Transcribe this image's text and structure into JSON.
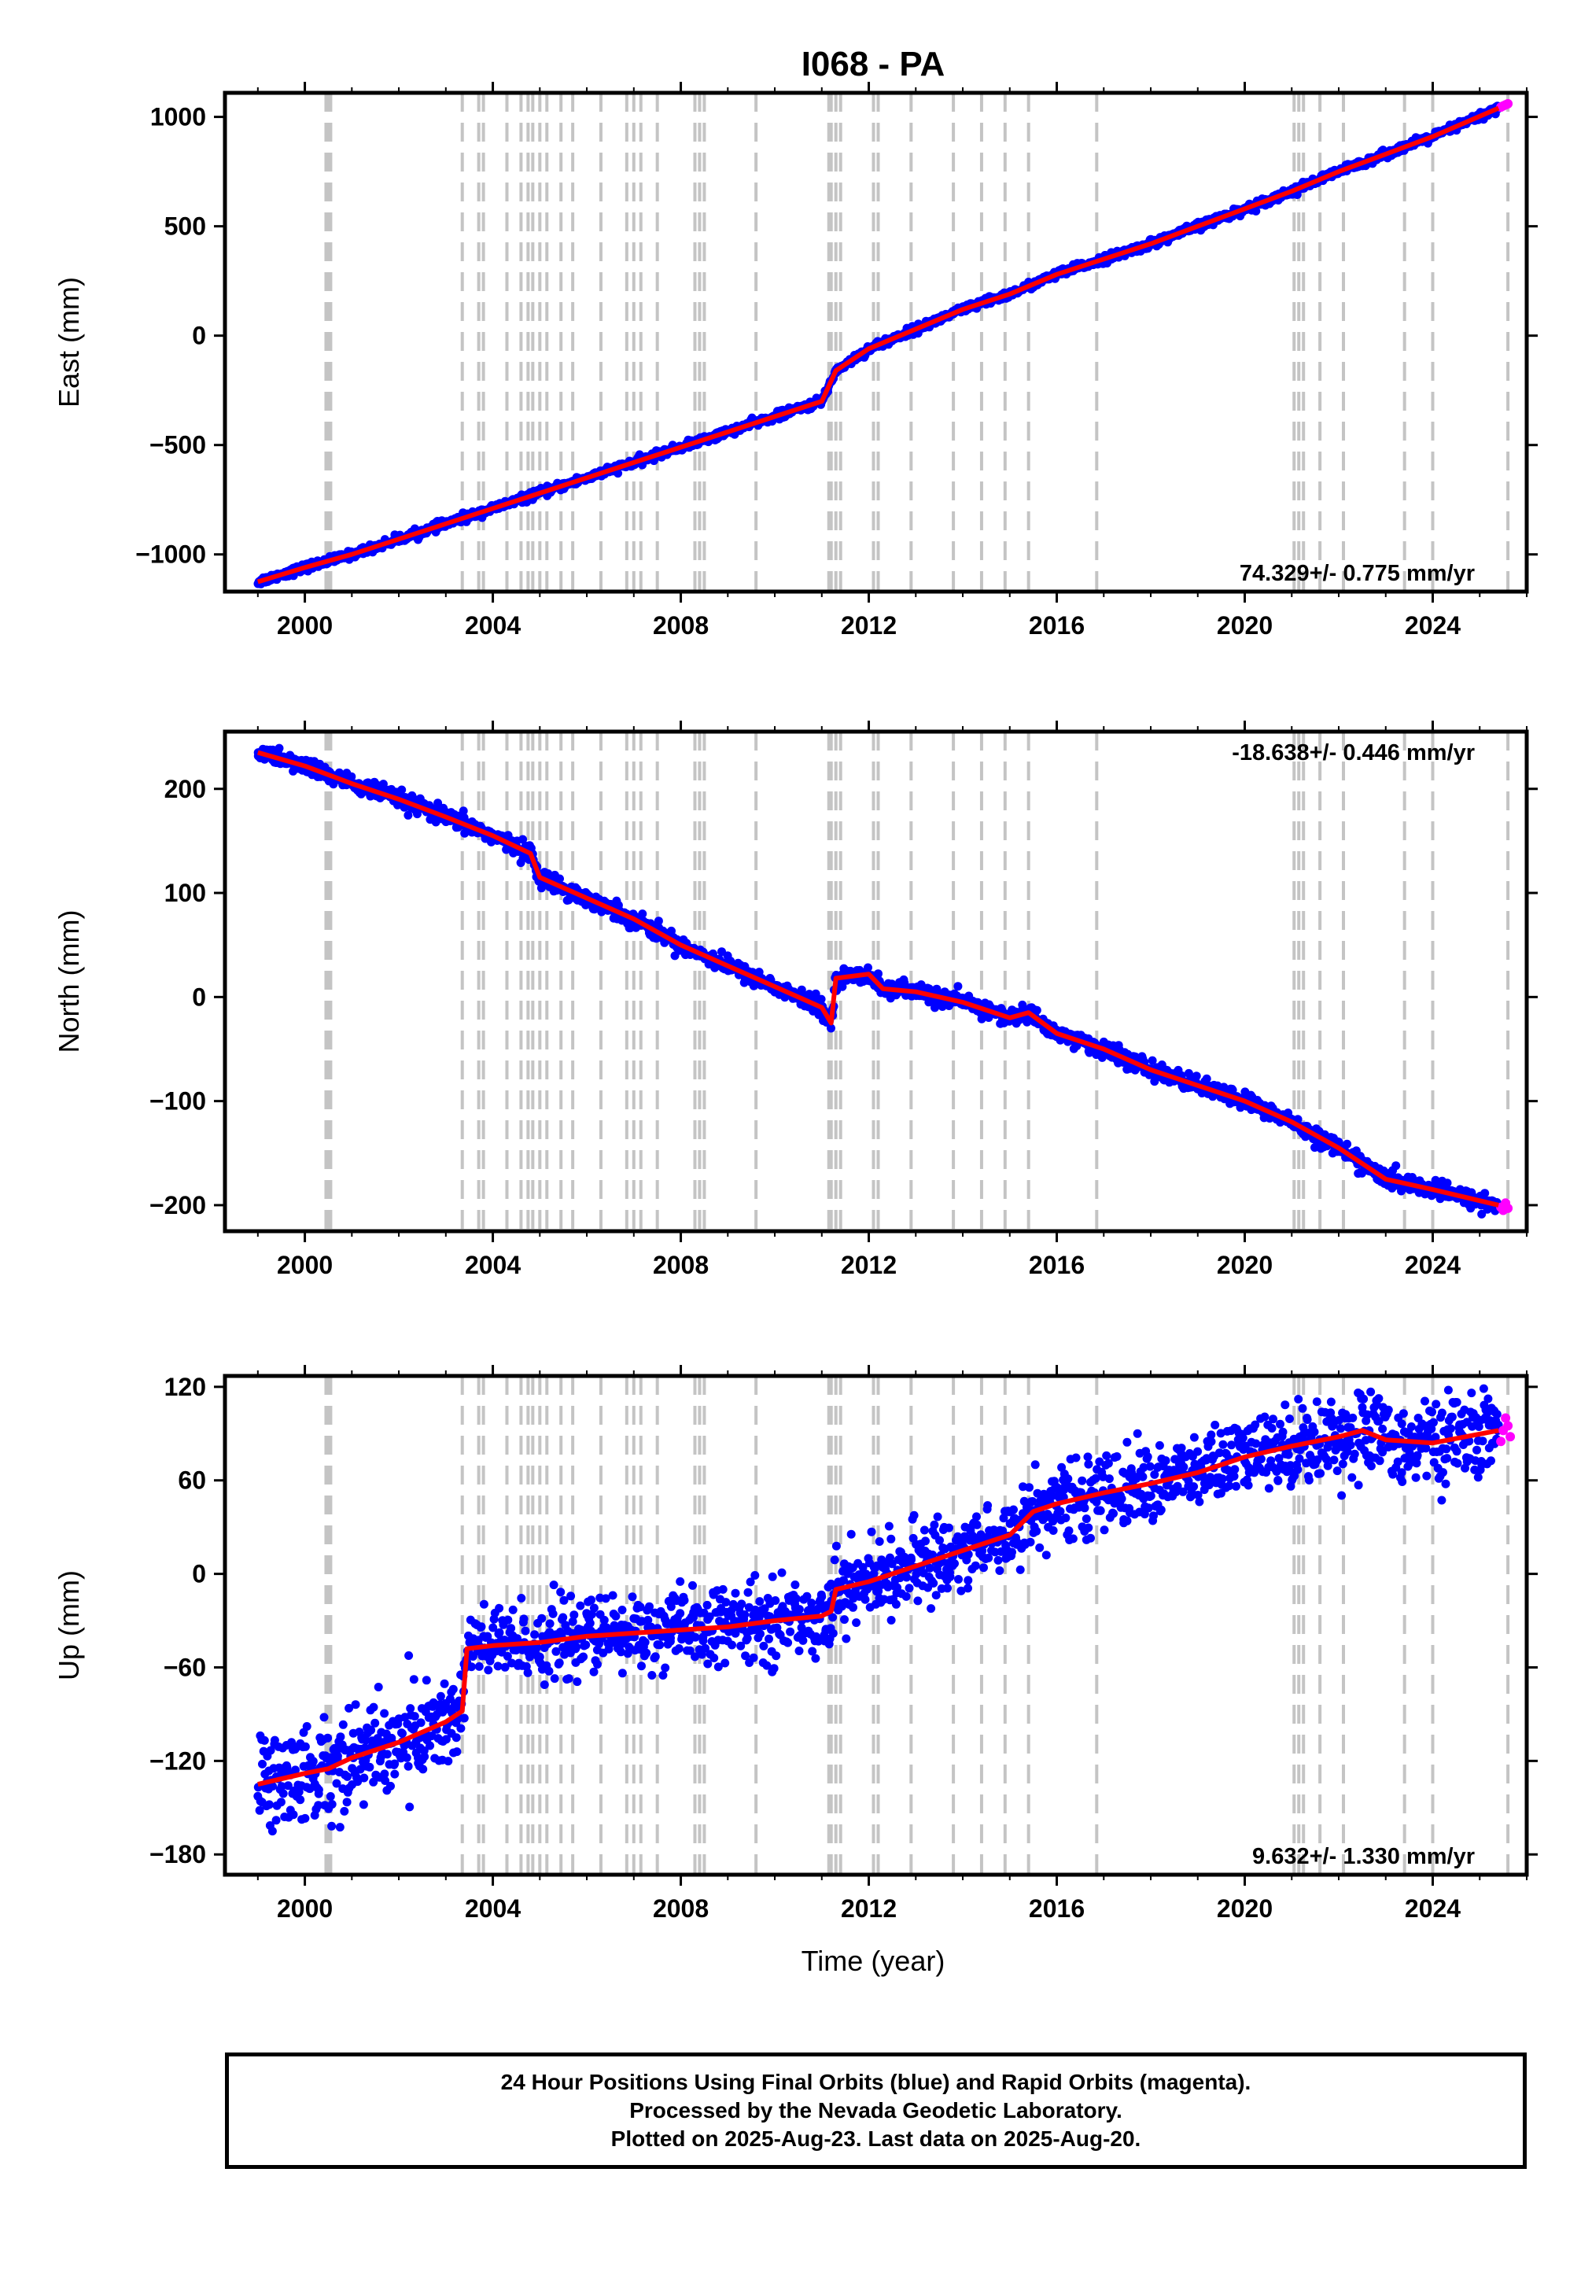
{
  "chart_data": {
    "type": "scatter",
    "title": "I068 - PA",
    "xlabel": "Time (year)",
    "xlim": [
      1998.3,
      2026.0
    ],
    "x_ticks": [
      2000,
      2004,
      2008,
      2012,
      2016,
      2020,
      2024
    ],
    "x_tick_labels": [
      "2000",
      "2004",
      "2008",
      "2012",
      "2016",
      "2020",
      "2024"
    ],
    "event_lines": [
      2000.45,
      2000.5,
      2000.55,
      2003.35,
      2003.7,
      2003.8,
      2004.3,
      2004.6,
      2004.75,
      2004.85,
      2005.0,
      2005.15,
      2005.45,
      2005.7,
      2006.3,
      2006.85,
      2007.0,
      2007.15,
      2007.5,
      2008.3,
      2008.4,
      2008.5,
      2009.6,
      2011.15,
      2011.2,
      2011.3,
      2011.4,
      2012.1,
      2012.2,
      2012.9,
      2013.8,
      2014.4,
      2014.9,
      2015.4,
      2016.85,
      2021.05,
      2021.15,
      2021.25,
      2021.6,
      2022.1,
      2023.4,
      2024.0,
      2025.6
    ],
    "panels": [
      {
        "component": "East",
        "ylabel": "East (mm)",
        "ylim": [
          -1170,
          1110
        ],
        "y_ticks": [
          1000,
          500,
          0,
          -500,
          -1000
        ],
        "y_tick_labels": [
          "1000",
          "500",
          "0",
          "−500",
          "−1000"
        ],
        "rate_text": "74.329+/- 0.775 mm/yr",
        "rate_position": "bottom-right",
        "final_series": {
          "name": "Final Orbits",
          "color": "#0000ff",
          "x": [
            1999.0,
            2000.0,
            2001.0,
            2002.0,
            2003.0,
            2004.0,
            2005.0,
            2006.0,
            2007.0,
            2008.0,
            2009.0,
            2010.0,
            2011.0,
            2011.3,
            2012.0,
            2013.0,
            2014.0,
            2015.0,
            2016.0,
            2017.0,
            2018.0,
            2019.0,
            2020.0,
            2021.0,
            2022.0,
            2023.0,
            2024.0,
            2025.4
          ],
          "y": [
            -1125,
            -1060,
            -1000,
            -930,
            -860,
            -790,
            -720,
            -650,
            -580,
            -510,
            -440,
            -370,
            -300,
            -160,
            -60,
            30,
            120,
            190,
            280,
            350,
            420,
            500,
            580,
            660,
            750,
            830,
            910,
            1040
          ]
        },
        "rapid_series": {
          "name": "Rapid Orbits",
          "color": "#ff00ff",
          "x": [
            2025.45,
            2025.5,
            2025.55,
            2025.6
          ],
          "y": [
            1045,
            1050,
            1055,
            1060
          ]
        },
        "trend_color": "#ff0000",
        "scatter_sigma": 9
      },
      {
        "component": "North",
        "ylabel": "North (mm)",
        "ylim": [
          -225,
          255
        ],
        "y_ticks": [
          200,
          100,
          0,
          -100,
          -200
        ],
        "y_tick_labels": [
          "200",
          "100",
          "0",
          "−100",
          "−200"
        ],
        "rate_text": "-18.638+/- 0.446 mm/yr",
        "rate_position": "top-right",
        "final_series": {
          "name": "Final Orbits",
          "color": "#0000ff",
          "x": [
            1999.0,
            2000.0,
            2001.0,
            2002.0,
            2003.0,
            2004.0,
            2004.8,
            2005.0,
            2006.0,
            2007.0,
            2008.0,
            2009.0,
            2010.0,
            2011.0,
            2011.2,
            2011.3,
            2012.0,
            2012.3,
            2013.0,
            2014.0,
            2015.0,
            2015.4,
            2016.0,
            2017.0,
            2018.0,
            2019.0,
            2020.0,
            2021.0,
            2022.0,
            2023.0,
            2024.0,
            2025.4
          ],
          "y": [
            235,
            222,
            205,
            190,
            173,
            155,
            138,
            115,
            95,
            75,
            50,
            30,
            10,
            -10,
            -25,
            18,
            22,
            8,
            5,
            -5,
            -20,
            -15,
            -35,
            -50,
            -70,
            -85,
            -100,
            -120,
            -145,
            -175,
            -185,
            -200
          ]
        },
        "rapid_series": {
          "name": "Rapid Orbits",
          "color": "#ff00ff",
          "x": [
            2025.45,
            2025.5,
            2025.55,
            2025.6
          ],
          "y": [
            -202,
            -205,
            -198,
            -203
          ]
        },
        "trend_color": "#ff0000",
        "scatter_sigma": 4
      },
      {
        "component": "Up",
        "ylabel": "Up (mm)",
        "ylim": [
          -193,
          127
        ],
        "y_ticks": [
          120,
          60,
          0,
          -60,
          -120,
          -180
        ],
        "y_tick_labels": [
          "120",
          "60",
          "0",
          "−60",
          "−120",
          "−180"
        ],
        "rate_text": "9.632+/- 1.330 mm/yr",
        "rate_position": "bottom-right",
        "final_series": {
          "name": "Final Orbits",
          "color": "#0000ff",
          "x": [
            1999.0,
            2000.0,
            2000.5,
            2001.0,
            2002.0,
            2003.0,
            2003.35,
            2003.45,
            2004.0,
            2005.0,
            2006.0,
            2007.0,
            2008.0,
            2009.0,
            2010.0,
            2011.0,
            2011.2,
            2011.3,
            2012.0,
            2013.0,
            2014.0,
            2015.0,
            2015.5,
            2016.0,
            2017.0,
            2018.0,
            2019.0,
            2020.0,
            2021.0,
            2022.0,
            2022.5,
            2023.0,
            2024.0,
            2025.4
          ],
          "y": [
            -135,
            -128,
            -125,
            -118,
            -108,
            -95,
            -88,
            -48,
            -46,
            -44,
            -40,
            -38,
            -36,
            -34,
            -30,
            -27,
            -24,
            -10,
            -5,
            5,
            15,
            25,
            40,
            45,
            52,
            58,
            65,
            75,
            82,
            88,
            92,
            86,
            84,
            92
          ]
        },
        "rapid_series": {
          "name": "Rapid Orbits",
          "color": "#ff00ff",
          "x": [
            2025.45,
            2025.5,
            2025.55,
            2025.6,
            2025.65
          ],
          "y": [
            85,
            92,
            100,
            95,
            88
          ]
        },
        "trend_color": "#ff0000",
        "scatter_sigma": 12
      }
    ]
  },
  "footer": {
    "line1": "24 Hour Positions Using Final Orbits (blue) and Rapid Orbits (magenta).",
    "line2": "Processed by the Nevada Geodetic Laboratory.",
    "line3": "Plotted on 2025-Aug-23. Last data on 2025-Aug-20."
  }
}
